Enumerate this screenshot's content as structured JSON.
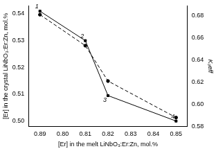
{
  "chart_data": {
    "type": "line",
    "x_label": "[Er] in the melt LiNbO₃:Er:Zn, mol.%",
    "y_label": "[Er] in the crystal LiNbO₃:Er:Zn, mol.%",
    "y2_label": "K₀eff",
    "categories": [
      "0.89",
      "0.80",
      "0.81",
      "0.82",
      "0.83",
      "0.84",
      "0.85"
    ],
    "series": [
      {
        "x": [
          "0.89",
          "0.81",
          "0.82",
          "0.85"
        ],
        "values": [
          0.541,
          0.53,
          0.5095,
          0.5
        ],
        "color": "#000000",
        "line_style": "solid",
        "marker": "square",
        "axis": "y",
        "point_labels": [
          "1",
          "2",
          "3",
          "4"
        ]
      },
      {
        "x": [
          "0.89",
          "0.81",
          "0.82",
          "0.85"
        ],
        "values": [
          0.681,
          0.653,
          0.621,
          0.588
        ],
        "color": "#000000",
        "line_style": "dashed",
        "marker": "circle",
        "axis": "y2"
      }
    ],
    "ylim": [
      0.498,
      0.543
    ],
    "yticks": [
      {
        "value": 0.5,
        "label": "0.50"
      },
      0.51,
      0.52,
      0.53,
      0.54
    ],
    "y2lim": [
      0.58,
      0.689
    ],
    "y2ticks": [
      0.58,
      {
        "value": 0.6,
        "label": "0.60"
      },
      0.62,
      0.64,
      0.66,
      0.68
    ],
    "grid": false
  }
}
